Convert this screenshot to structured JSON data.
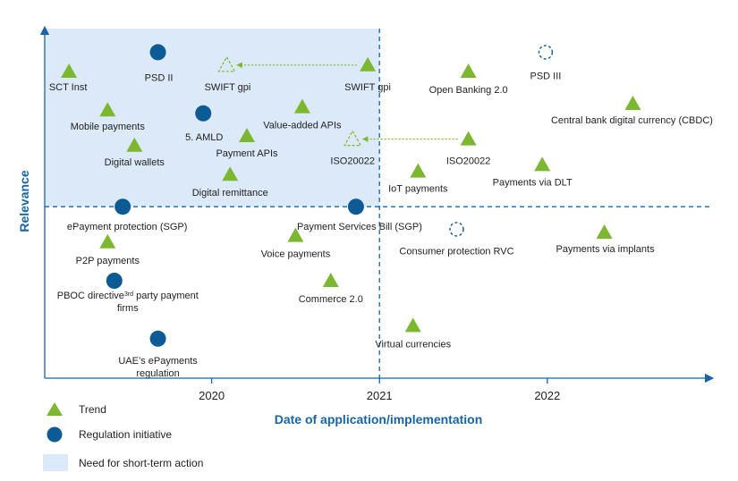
{
  "chart_data": {
    "type": "scatter",
    "title": "",
    "xlabel": "Date of application/implementation",
    "ylabel": "Relevance",
    "xticks": [
      "2020",
      "2021",
      "2022"
    ],
    "xlim": [
      2019.0,
      2023.0
    ],
    "ylim": [
      0,
      100
    ],
    "divider": {
      "x": 2021.0,
      "y": 48
    },
    "shaded_region": {
      "label": "Need for short-term action",
      "x": [
        2019.0,
        2021.0
      ],
      "y": [
        48,
        100
      ]
    },
    "colors": {
      "trend": "#7cb82f",
      "regulation": "#0c5b96",
      "shade": "#dbe9f8",
      "axis": "#1565a8",
      "dashed": "#1565a8"
    },
    "legend": [
      {
        "key": "trend",
        "label": "Trend",
        "marker": "triangle"
      },
      {
        "key": "regulation",
        "label": "Regulation initiative",
        "marker": "circle"
      },
      {
        "key": "shade",
        "label": "Need for short-term action",
        "marker": "square"
      }
    ],
    "points": [
      {
        "id": "sct-inst",
        "label": "SCT Inst",
        "type": "trend",
        "x": 2019.15,
        "y": 90
      },
      {
        "id": "psd-ii",
        "label": "PSD II",
        "type": "regulation",
        "x": 2019.68,
        "y": 96
      },
      {
        "id": "swift-gpi-old",
        "label": "SWIFT gpi",
        "type": "trend",
        "style": "outline",
        "x": 2020.09,
        "y": 92
      },
      {
        "id": "swift-gpi",
        "label": "SWIFT gpi",
        "type": "trend",
        "x": 2020.93,
        "y": 92
      },
      {
        "id": "mobile-payments",
        "label": "Mobile payments",
        "type": "trend",
        "x": 2019.38,
        "y": 78
      },
      {
        "id": "5-amld",
        "label": "5. AMLD",
        "type": "regulation",
        "x": 2019.95,
        "y": 77
      },
      {
        "id": "value-added-apis",
        "label": "Value-added APIs",
        "type": "trend",
        "x": 2020.54,
        "y": 79
      },
      {
        "id": "payment-apis",
        "label": "Payment APIs",
        "type": "trend",
        "x": 2020.21,
        "y": 70
      },
      {
        "id": "digital-wallets",
        "label": "Digital wallets",
        "type": "trend",
        "x": 2019.54,
        "y": 67
      },
      {
        "id": "iso20022-old",
        "label": "ISO20022",
        "type": "trend",
        "style": "outline",
        "x": 2020.84,
        "y": 69
      },
      {
        "id": "iso20022",
        "label": "ISO20022",
        "type": "trend",
        "x": 2021.53,
        "y": 69
      },
      {
        "id": "digital-remittance",
        "label": "Digital remittance",
        "type": "trend",
        "x": 2020.11,
        "y": 58
      },
      {
        "id": "epayment-protection",
        "label": "ePayment protection (SGP)",
        "type": "regulation",
        "x": 2019.47,
        "y": 48
      },
      {
        "id": "payment-services-bill",
        "label": "Payment Services Bill (SGP)",
        "type": "regulation",
        "x": 2020.86,
        "y": 48
      },
      {
        "id": "open-banking",
        "label": "Open Banking 2.0",
        "type": "trend",
        "x": 2021.53,
        "y": 90
      },
      {
        "id": "psd-iii",
        "label": "PSD III",
        "type": "regulation",
        "style": "outline",
        "x": 2021.99,
        "y": 96
      },
      {
        "id": "cbdc",
        "label": "Central bank digital currency (CBDC)",
        "type": "trend",
        "x": 2022.51,
        "y": 80
      },
      {
        "id": "iot-payments",
        "label": "IoT payments",
        "type": "trend",
        "x": 2021.23,
        "y": 59
      },
      {
        "id": "payments-dlt",
        "label": "Payments via DLT",
        "type": "trend",
        "x": 2021.97,
        "y": 61
      },
      {
        "id": "consumer-protection",
        "label": "Consumer protection RVC",
        "type": "regulation",
        "style": "outline",
        "x": 2021.46,
        "y": 41
      },
      {
        "id": "p2p-payments",
        "label": "P2P payments",
        "type": "trend",
        "x": 2019.38,
        "y": 37
      },
      {
        "id": "voice-payments",
        "label": "Voice payments",
        "type": "trend",
        "x": 2020.5,
        "y": 39
      },
      {
        "id": "payments-implants",
        "label": "Payments via implants",
        "type": "trend",
        "x": 2022.34,
        "y": 40
      },
      {
        "id": "pboc-directive",
        "label": "PBOC directive",
        "sup": "3rd",
        "label_cont": " party payment",
        "label_line2": "firms",
        "type": "regulation",
        "x": 2019.42,
        "y": 25
      },
      {
        "id": "commerce-2",
        "label": "Commerce 2.0",
        "type": "trend",
        "x": 2020.71,
        "y": 25
      },
      {
        "id": "virtual-currencies",
        "label": "Virtual currencies",
        "type": "trend",
        "x": 2021.2,
        "y": 11
      },
      {
        "id": "uae-epayments",
        "label": "UAE’s ePayments",
        "label_line2": "regulation",
        "type": "regulation",
        "x": 2019.68,
        "y": 7
      }
    ],
    "arrows": [
      {
        "from": "swift-gpi",
        "to": "swift-gpi-old"
      },
      {
        "from": "iso20022",
        "to": "iso20022-old"
      }
    ]
  }
}
